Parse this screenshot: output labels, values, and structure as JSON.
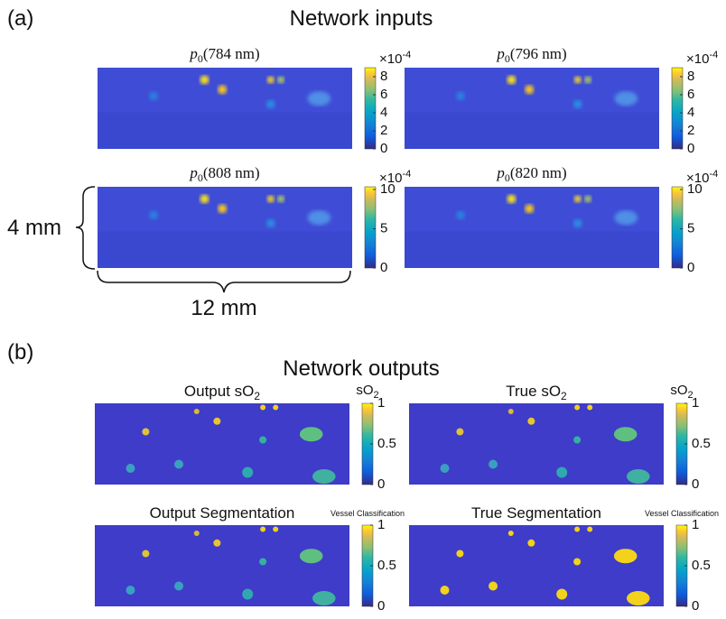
{
  "panel_a": {
    "label": "(a)",
    "title": "Network inputs",
    "height_label": "4 mm",
    "width_label": "12 mm",
    "images": [
      {
        "title_var": "p",
        "title_sub": "0",
        "title_arg": "(784 nm)",
        "scale": "×10",
        "scale_exp": "-4",
        "ticks": [
          "8",
          "6",
          "4",
          "2",
          "0"
        ]
      },
      {
        "title_var": "p",
        "title_sub": "0",
        "title_arg": "(796 nm)",
        "scale": "×10",
        "scale_exp": "-4",
        "ticks": [
          "8",
          "6",
          "4",
          "2",
          "0"
        ]
      },
      {
        "title_var": "p",
        "title_sub": "0",
        "title_arg": "(808 nm)",
        "scale": "×10",
        "scale_exp": "-4",
        "ticks": [
          "10",
          "5",
          "0"
        ]
      },
      {
        "title_var": "p",
        "title_sub": "0",
        "title_arg": "(820 nm)",
        "scale": "×10",
        "scale_exp": "-4",
        "ticks": [
          "10",
          "5",
          "0"
        ]
      }
    ]
  },
  "panel_b": {
    "label": "(b)",
    "title": "Network outputs",
    "images": [
      {
        "title": "Output sO",
        "title_sub": "2",
        "cb_label": "sO",
        "cb_sub": "2",
        "ticks": [
          "1",
          "0.5",
          "0"
        ]
      },
      {
        "title": "True sO",
        "title_sub": "2",
        "cb_label": "sO",
        "cb_sub": "2",
        "ticks": [
          "1",
          "0.5",
          "0"
        ]
      },
      {
        "title": "Output Segmentation",
        "cb_label": "Vessel Classification",
        "ticks": [
          "1",
          "0.5",
          "0"
        ]
      },
      {
        "title": "True Segmentation",
        "cb_label": "Vessel Classification",
        "ticks": [
          "1",
          "0.5",
          "0"
        ]
      }
    ]
  }
}
